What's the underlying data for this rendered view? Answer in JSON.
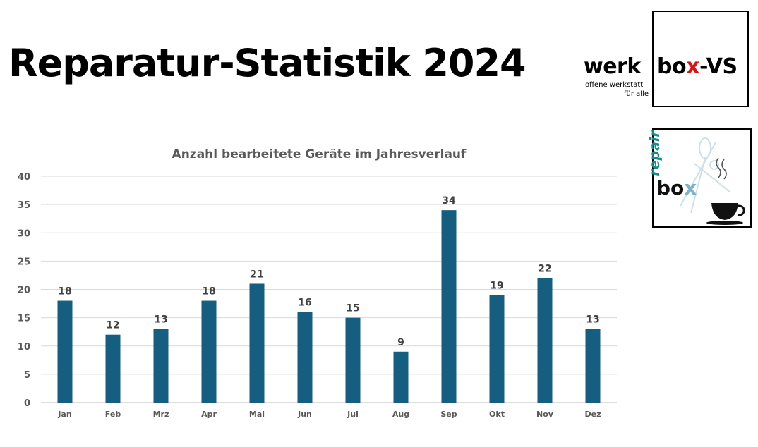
{
  "page": {
    "title": "Reparatur-Statistik 2024"
  },
  "logos": {
    "werkbox": {
      "word_left": "werk",
      "word_right_a": "bo",
      "word_right_x": "x",
      "word_right_b": "-VS",
      "subtitle_line1": "offene werkstatt",
      "subtitle_line2": "für alle",
      "x_color": "#d4141a"
    },
    "repairbox": {
      "word_top": "repair",
      "word_bottom_a": "bo",
      "word_bottom_x": "x",
      "icon": "coffee-cup-icon",
      "accent": "#1a8a8c"
    }
  },
  "chart_data": {
    "type": "bar",
    "title": "Anzahl bearbeitete Geräte im Jahresverlauf",
    "xlabel": "",
    "ylabel": "",
    "categories": [
      "Jan",
      "Feb",
      "Mrz",
      "Apr",
      "Mai",
      "Jun",
      "Jul",
      "Aug",
      "Sep",
      "Okt",
      "Nov",
      "Dez"
    ],
    "values": [
      18,
      12,
      13,
      18,
      21,
      16,
      15,
      9,
      34,
      19,
      22,
      13
    ],
    "ylim": [
      0,
      40
    ],
    "yticks": [
      0,
      5,
      10,
      15,
      20,
      25,
      30,
      35,
      40
    ],
    "grid": true,
    "legend": "none",
    "data_labels": true,
    "bar_color": "#155e80"
  }
}
